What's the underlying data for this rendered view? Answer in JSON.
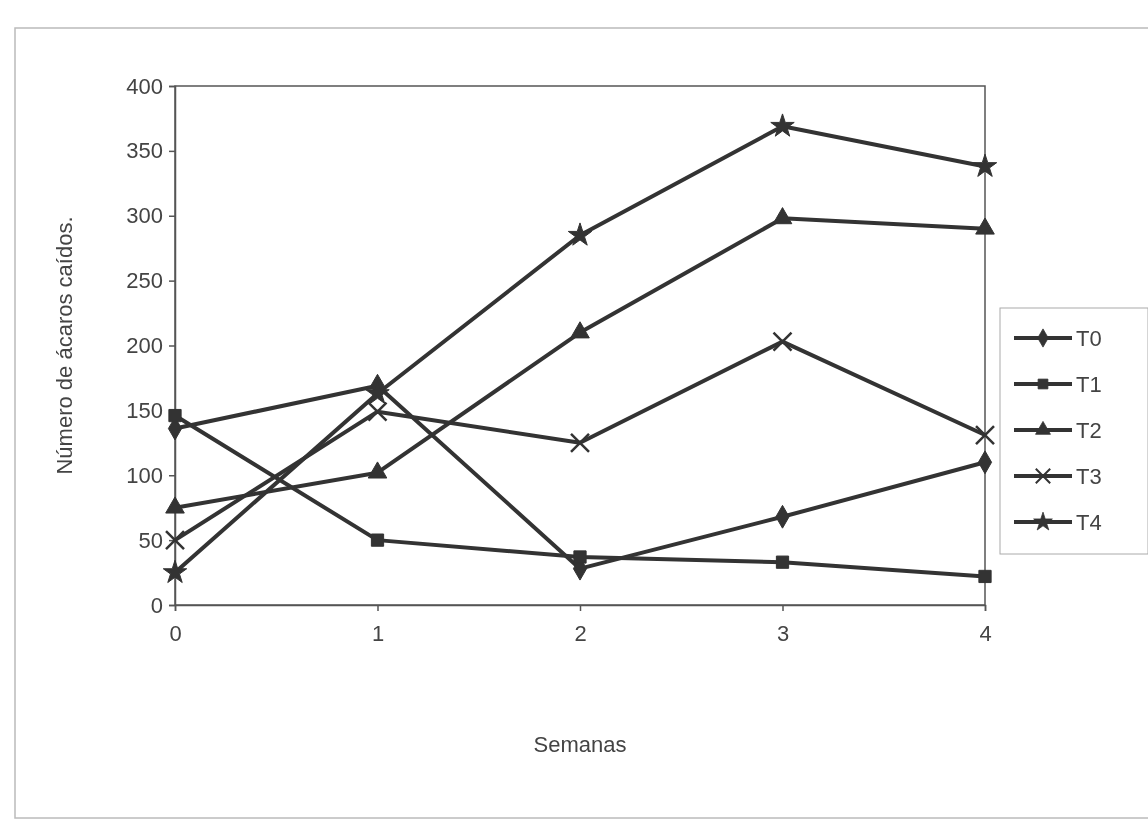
{
  "chart_data": {
    "type": "line",
    "xlabel": "Semanas",
    "ylabel": "Número de ácaros caídos.",
    "x": [
      0,
      1,
      2,
      3,
      4
    ],
    "xlim": [
      0,
      4
    ],
    "xticks": [
      0,
      1,
      2,
      3,
      4
    ],
    "ylim": [
      0,
      400
    ],
    "yticks": [
      0,
      50,
      100,
      150,
      200,
      250,
      300,
      350,
      400
    ],
    "grid": false,
    "legend": "right",
    "line_style": "solid",
    "series": [
      {
        "name": "T0",
        "color": "#333333",
        "marker": "diamond",
        "values": [
          136,
          169,
          28,
          68,
          110
        ]
      },
      {
        "name": "T1",
        "color": "#333333",
        "marker": "square",
        "values": [
          146,
          50,
          37,
          33,
          22
        ]
      },
      {
        "name": "T2",
        "color": "#333333",
        "marker": "triangle",
        "values": [
          75,
          102,
          210,
          298,
          290
        ]
      },
      {
        "name": "T3",
        "color": "#333333",
        "marker": "cross",
        "values": [
          50,
          149,
          125,
          203,
          131
        ]
      },
      {
        "name": "T4",
        "color": "#333333",
        "marker": "star",
        "values": [
          25,
          163,
          285,
          369,
          338
        ]
      }
    ]
  }
}
